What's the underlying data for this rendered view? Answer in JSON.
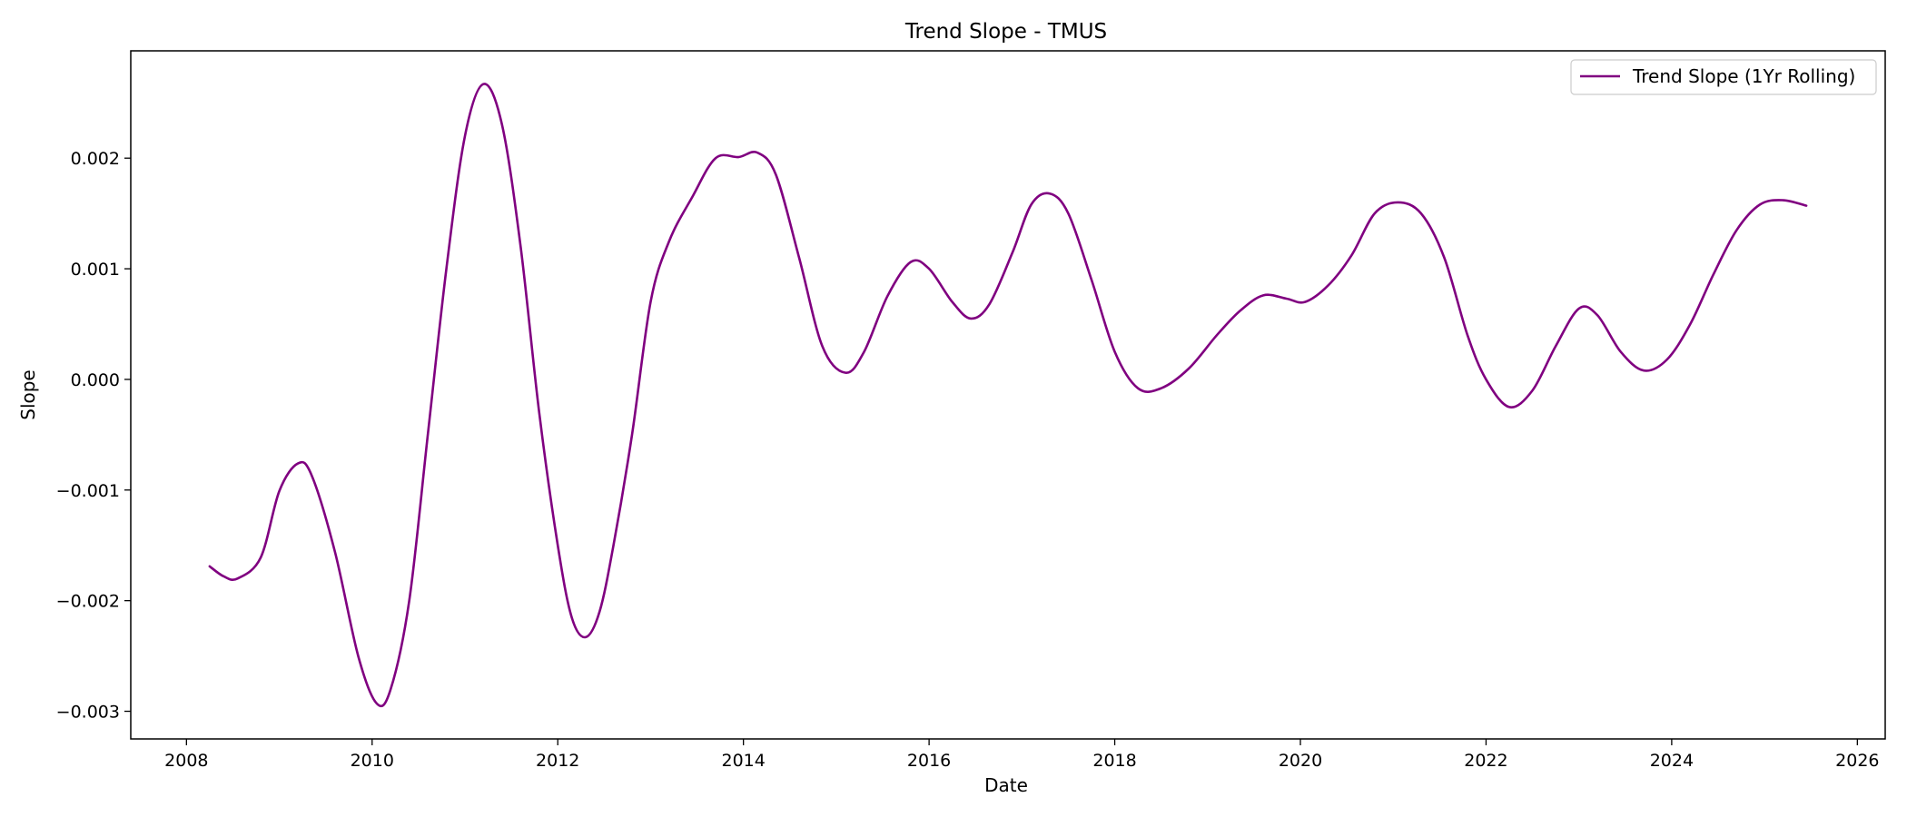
{
  "chart_data": {
    "type": "line",
    "title": "Trend Slope - TMUS",
    "xlabel": "Date",
    "ylabel": "Slope",
    "xlim": [
      2007.4,
      2026.3
    ],
    "ylim": [
      -0.00325,
      0.00297
    ],
    "x_ticks": [
      2008,
      2010,
      2012,
      2014,
      2016,
      2018,
      2020,
      2022,
      2024,
      2026
    ],
    "x_tick_labels": [
      "2008",
      "2010",
      "2012",
      "2014",
      "2016",
      "2018",
      "2020",
      "2022",
      "2024",
      "2026"
    ],
    "y_ticks": [
      -0.003,
      -0.002,
      -0.001,
      0.0,
      0.001,
      0.002
    ],
    "y_tick_labels": [
      "−0.003",
      "−0.002",
      "−0.001",
      "0.000",
      "0.001",
      "0.002"
    ],
    "grid": false,
    "legend": {
      "placement": "top-right"
    },
    "series": [
      {
        "name": "Trend Slope (1Yr Rolling)",
        "color": "#800080",
        "points": [
          [
            2008.25,
            -0.00169
          ],
          [
            2008.4,
            -0.00178
          ],
          [
            2008.55,
            -0.0018
          ],
          [
            2008.8,
            -0.00161
          ],
          [
            2009.0,
            -0.00101
          ],
          [
            2009.2,
            -0.00076
          ],
          [
            2009.35,
            -0.00087
          ],
          [
            2009.6,
            -0.00156
          ],
          [
            2009.85,
            -0.0025
          ],
          [
            2010.05,
            -0.00293
          ],
          [
            2010.2,
            -0.0028
          ],
          [
            2010.4,
            -0.002
          ],
          [
            2010.6,
            -0.0005
          ],
          [
            2010.8,
            0.001
          ],
          [
            2011.0,
            0.0022
          ],
          [
            2011.2,
            0.00267
          ],
          [
            2011.4,
            0.0023
          ],
          [
            2011.6,
            0.0012
          ],
          [
            2011.8,
            -0.0003
          ],
          [
            2012.0,
            -0.0015
          ],
          [
            2012.15,
            -0.00215
          ],
          [
            2012.3,
            -0.00233
          ],
          [
            2012.45,
            -0.0021
          ],
          [
            2012.6,
            -0.0015
          ],
          [
            2012.8,
            -0.0005
          ],
          [
            2013.0,
            0.0007
          ],
          [
            2013.2,
            0.00125
          ],
          [
            2013.45,
            0.00165
          ],
          [
            2013.7,
            0.002
          ],
          [
            2013.95,
            0.00201
          ],
          [
            2014.15,
            0.00205
          ],
          [
            2014.35,
            0.00185
          ],
          [
            2014.6,
            0.0011
          ],
          [
            2014.85,
            0.0003
          ],
          [
            2015.1,
            6e-05
          ],
          [
            2015.3,
            0.00025
          ],
          [
            2015.55,
            0.00075
          ],
          [
            2015.8,
            0.00106
          ],
          [
            2016.0,
            0.001
          ],
          [
            2016.25,
            0.0007
          ],
          [
            2016.45,
            0.00055
          ],
          [
            2016.65,
            0.00068
          ],
          [
            2016.9,
            0.00115
          ],
          [
            2017.1,
            0.00158
          ],
          [
            2017.3,
            0.00168
          ],
          [
            2017.5,
            0.0015
          ],
          [
            2017.75,
            0.0009
          ],
          [
            2018.0,
            0.00025
          ],
          [
            2018.25,
            -8e-05
          ],
          [
            2018.5,
            -8e-05
          ],
          [
            2018.8,
            0.0001
          ],
          [
            2019.1,
            0.0004
          ],
          [
            2019.35,
            0.00062
          ],
          [
            2019.6,
            0.00076
          ],
          [
            2019.85,
            0.00073
          ],
          [
            2020.05,
            0.0007
          ],
          [
            2020.3,
            0.00085
          ],
          [
            2020.55,
            0.00112
          ],
          [
            2020.8,
            0.0015
          ],
          [
            2021.05,
            0.0016
          ],
          [
            2021.3,
            0.0015
          ],
          [
            2021.55,
            0.0011
          ],
          [
            2021.8,
            0.0004
          ],
          [
            2022.0,
            0.0
          ],
          [
            2022.25,
            -0.00025
          ],
          [
            2022.5,
            -0.0001
          ],
          [
            2022.75,
            0.0003
          ],
          [
            2023.0,
            0.00064
          ],
          [
            2023.2,
            0.00058
          ],
          [
            2023.45,
            0.00025
          ],
          [
            2023.7,
            8e-05
          ],
          [
            2023.95,
            0.00018
          ],
          [
            2024.2,
            0.0005
          ],
          [
            2024.45,
            0.00095
          ],
          [
            2024.7,
            0.00135
          ],
          [
            2024.95,
            0.00158
          ],
          [
            2025.2,
            0.00162
          ],
          [
            2025.45,
            0.00157
          ]
        ]
      }
    ]
  }
}
